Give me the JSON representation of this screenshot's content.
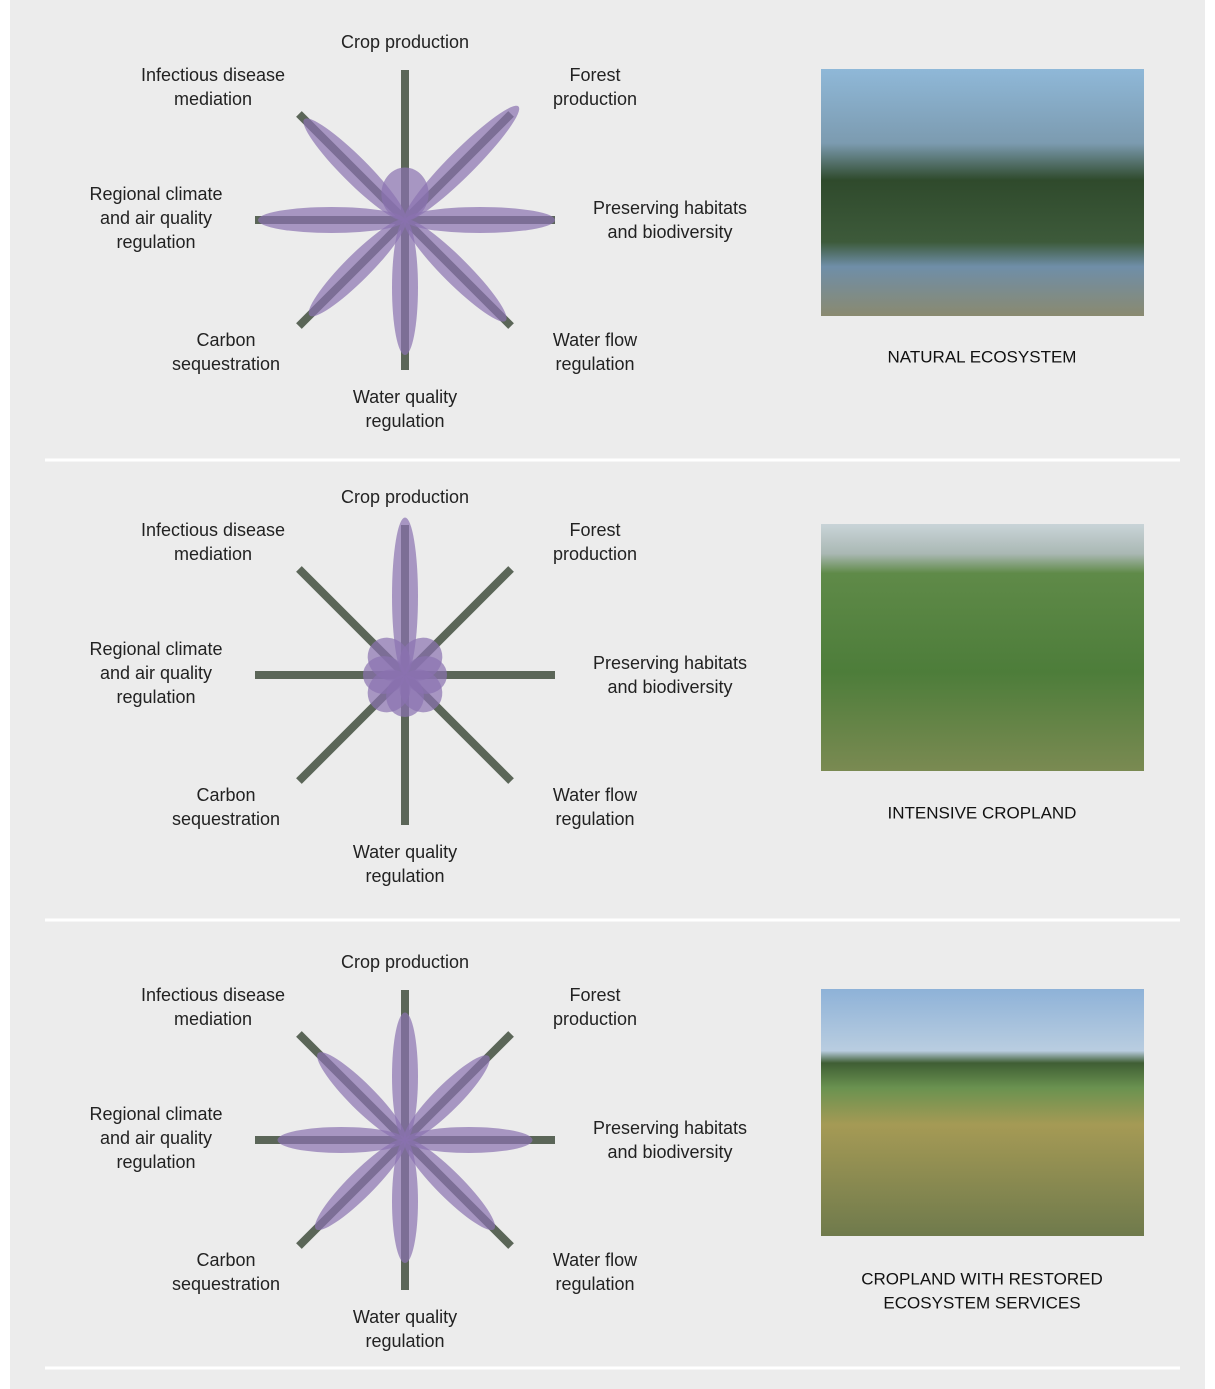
{
  "chart_data": [
    {
      "type": "flower",
      "title": [
        "NATURAL ECOSYSTEM"
      ],
      "categories": [
        [
          "Crop production"
        ],
        [
          "Forest",
          "production"
        ],
        [
          "Preserving habitats",
          "and biodiversity"
        ],
        [
          "Water flow",
          "regulation"
        ],
        [
          "Water quality",
          "regulation"
        ],
        [
          "Carbon",
          "sequestration"
        ],
        [
          "Regional climate",
          "and air quality",
          "regulation"
        ],
        [
          "Infectious disease",
          "mediation"
        ]
      ],
      "values": [
        35,
        107,
        100,
        95,
        90,
        90,
        98,
        95
      ],
      "rlim": [
        0,
        100
      ],
      "color": "#8a72b0"
    },
    {
      "type": "flower",
      "title": [
        "INTENSIVE CROPLAND"
      ],
      "categories": [
        [
          "Crop production"
        ],
        [
          "Forest",
          "production"
        ],
        [
          "Preserving habitats",
          "and biodiversity"
        ],
        [
          "Water flow",
          "regulation"
        ],
        [
          "Water quality",
          "regulation"
        ],
        [
          "Carbon",
          "sequestration"
        ],
        [
          "Regional climate",
          "and air quality",
          "regulation"
        ],
        [
          "Infectious disease",
          "mediation"
        ]
      ],
      "values": [
        105,
        30,
        28,
        30,
        28,
        30,
        28,
        30
      ],
      "rlim": [
        0,
        100
      ],
      "color": "#8a72b0"
    },
    {
      "type": "flower",
      "title": [
        "CROPLAND WITH RESTORED",
        "ECOSYSTEM SERVICES"
      ],
      "categories": [
        [
          "Crop production"
        ],
        [
          "Forest",
          "production"
        ],
        [
          "Preserving habitats",
          "and biodiversity"
        ],
        [
          "Water flow",
          "regulation"
        ],
        [
          "Water quality",
          "regulation"
        ],
        [
          "Carbon",
          "sequestration"
        ],
        [
          "Regional climate",
          "and air quality",
          "regulation"
        ],
        [
          "Infectious disease",
          "mediation"
        ]
      ],
      "values": [
        85,
        79,
        85,
        84,
        82,
        84,
        85,
        82
      ],
      "rlim": [
        0,
        100
      ],
      "color": "#8a72b0"
    }
  ]
}
